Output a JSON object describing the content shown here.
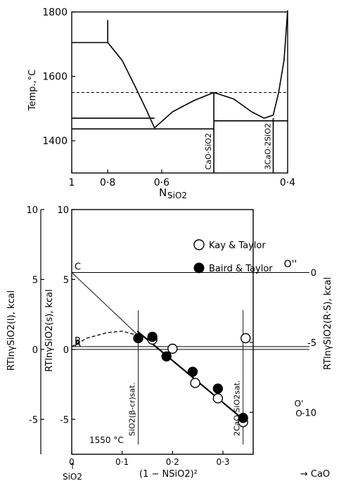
{
  "chart_data": [
    {
      "type": "line",
      "panel": "phase-diagram",
      "ylabel": "Temp.,°C",
      "xlabel_main": "N",
      "xlabel_sub": "SiO2",
      "x_reversed": true,
      "xlim": [
        1.0,
        0.4
      ],
      "ylim": [
        1300,
        1800
      ],
      "yticks": [
        {
          "value": 1400,
          "label": "1400"
        },
        {
          "value": 1600,
          "label": "1600"
        },
        {
          "value": 1800,
          "label": "1800"
        }
      ],
      "xticks": [
        {
          "value": 1.0,
          "label": "1"
        },
        {
          "value": 0.9,
          "label": "0·8"
        },
        {
          "value": 0.75,
          "label": "0·6"
        },
        {
          "value": 0.4,
          "label": "0·4"
        }
      ],
      "dashed_temperature": 1550,
      "series": [
        {
          "style": "solid",
          "points": [
            [
              0.9,
              1775
            ],
            [
              0.9,
              1705
            ],
            [
              1.0,
              1705
            ]
          ]
        },
        {
          "style": "solid",
          "points": [
            [
              0.9,
              1705
            ],
            [
              0.86,
              1650
            ],
            [
              0.82,
              1560
            ],
            [
              0.79,
              1490
            ],
            [
              0.77,
              1440
            ]
          ]
        },
        {
          "style": "solid",
          "points": [
            [
              0.77,
              1440
            ],
            [
              0.72,
              1490
            ],
            [
              0.66,
              1525
            ],
            [
              0.605,
              1550
            ]
          ]
        },
        {
          "style": "solid",
          "points": [
            [
              0.605,
              1550
            ],
            [
              0.55,
              1530
            ],
            [
              0.5,
              1490
            ],
            [
              0.465,
              1470
            ]
          ]
        },
        {
          "style": "solid",
          "points": [
            [
              0.465,
              1470
            ],
            [
              0.44,
              1480
            ],
            [
              0.425,
              1550
            ],
            [
              0.41,
              1650
            ],
            [
              0.4,
              1805
            ]
          ]
        },
        {
          "style": "solid",
          "points": [
            [
              1.0,
              1470
            ],
            [
              0.77,
              1470
            ]
          ]
        },
        {
          "style": "solid",
          "points": [
            [
              1.0,
              1437
            ],
            [
              0.605,
              1437
            ]
          ]
        },
        {
          "style": "solid",
          "points": [
            [
              0.605,
              1462
            ],
            [
              0.465,
              1462
            ]
          ]
        },
        {
          "style": "solid",
          "points": [
            [
              0.465,
              1462
            ],
            [
              0.4,
              1462
            ]
          ]
        },
        {
          "style": "solid",
          "points": [
            [
              0.605,
              1300
            ],
            [
              0.605,
              1550
            ]
          ]
        },
        {
          "style": "solid",
          "points": [
            [
              0.44,
              1300
            ],
            [
              0.44,
              1470
            ]
          ]
        }
      ],
      "annotations": [
        {
          "text": "CaO·SiO2",
          "x": 0.605,
          "y": 1310
        },
        {
          "text": "3CaO·2SiO2",
          "x": 0.44,
          "y": 1310
        }
      ]
    },
    {
      "type": "scatter",
      "panel": "activity-plot",
      "title_note": "1550 °C",
      "xlabel": "(1 − NSiO2)²",
      "x_left_label": "SiO2",
      "x_right_label": "→ CaO",
      "xlim": [
        0,
        0.36
      ],
      "ylim": [
        -7.5,
        10
      ],
      "xticks": [
        {
          "value": 0,
          "label": "0"
        },
        {
          "value": 0.1,
          "label": "0·1"
        },
        {
          "value": 0.2,
          "label": "0·2"
        },
        {
          "value": 0.3,
          "label": "0·3"
        }
      ],
      "y_left_outer_label": "RTlnγSiO2(l), kcal",
      "y_left_inner_label": "RTlnγSiO2(s), kcal",
      "y_right_label": "RTlnγSiO2(R·S), kcal",
      "yticks_left_outer": [
        {
          "value": 10,
          "label": "10"
        },
        {
          "value": 5,
          "label": "5"
        },
        {
          "value": 0,
          "label": "0"
        },
        {
          "value": -5,
          "label": "-5"
        }
      ],
      "yticks_left_inner": [
        {
          "value": 10,
          "label": "10"
        },
        {
          "value": 5,
          "label": "5"
        },
        {
          "value": 0,
          "label": "0"
        },
        {
          "value": -5,
          "label": "-5"
        }
      ],
      "yticks_right": [
        {
          "value": 5.5,
          "label": "0"
        },
        {
          "value": 0.5,
          "label": "-5"
        },
        {
          "value": -4.5,
          "label": "-10"
        }
      ],
      "reference_lines": [
        {
          "label": "C",
          "y": 5.5
        },
        {
          "label": "B",
          "y": 0.2
        },
        {
          "label": "A",
          "y": 0
        }
      ],
      "line_end_label": "O''",
      "right_side_labels": [
        "O'",
        "O"
      ],
      "vertical_markers": [
        {
          "x": 0.132,
          "label": "SiO2(β-cr)sat."
        },
        {
          "x": 0.34,
          "label": "2CaO·SiO2sat."
        }
      ],
      "legend_position": "top-right",
      "series": [
        {
          "name": "Kay & Taylor",
          "marker": "open-circle",
          "x": [
            0.16,
            0.2,
            0.245,
            0.29,
            0.34,
            0.345
          ],
          "y": [
            0.7,
            0.05,
            -2.4,
            -3.5,
            -5.2,
            0.8
          ]
        },
        {
          "name": "Baird & Taylor",
          "marker": "filled-circle",
          "x": [
            0.132,
            0.16,
            0.188,
            0.24,
            0.29,
            0.34
          ],
          "y": [
            0.8,
            0.9,
            -0.5,
            -1.6,
            -2.8,
            -4.9
          ]
        }
      ],
      "lines": [
        {
          "style": "solid-thin",
          "points": [
            [
              0,
              5.5
            ],
            [
              0.132,
              1.0
            ]
          ]
        },
        {
          "style": "dashed",
          "points": [
            [
              0,
              0.2
            ],
            [
              0.03,
              0.8
            ],
            [
              0.07,
              1.2
            ],
            [
              0.1,
              1.3
            ],
            [
              0.132,
              1.0
            ]
          ]
        },
        {
          "style": "solid-thick",
          "points": [
            [
              0.13,
              1.3
            ],
            [
              0.34,
              -5.0
            ]
          ]
        }
      ]
    }
  ]
}
